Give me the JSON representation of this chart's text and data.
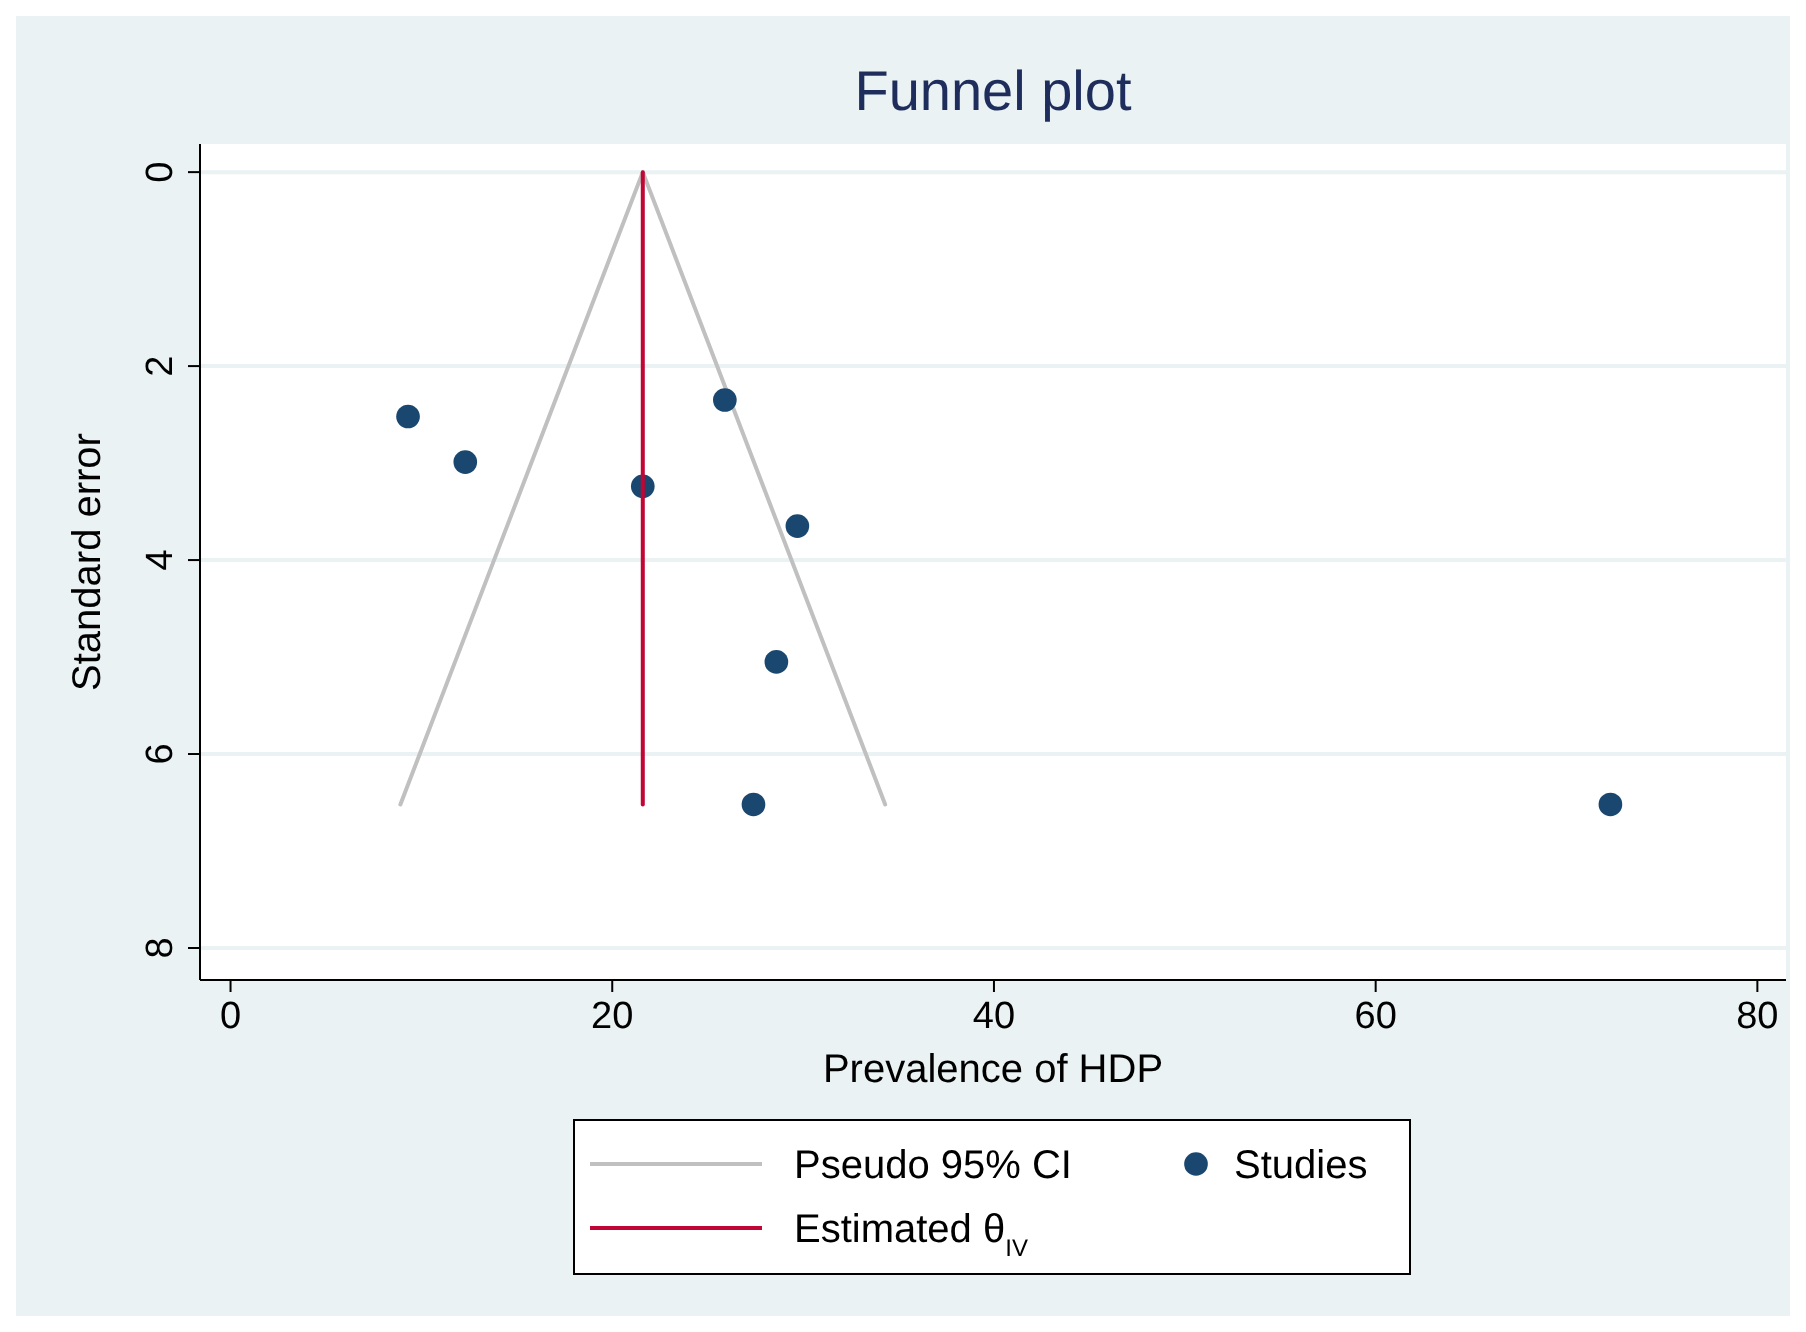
{
  "chart_data": {
    "type": "scatter",
    "title": "Funnel plot",
    "xlabel": "Prevalence of HDP",
    "ylabel": "Standard error",
    "xlim": [
      -1.6,
      81.5
    ],
    "xticks": [
      0,
      20,
      40,
      60,
      80
    ],
    "ylim": [
      8.33,
      -0.29
    ],
    "yticks": [
      0,
      2,
      4,
      6,
      8
    ],
    "grid": "y",
    "legend": "bottom",
    "series": [
      {
        "name": "Pseudo 95% CI",
        "type": "line",
        "marker": "none",
        "color": "#c0c0c0",
        "x": [
          8.9,
          21.6,
          34.3
        ],
        "values": [
          6.52,
          0,
          6.52
        ]
      },
      {
        "name": "Studies",
        "marker": "circle",
        "color": "#1a476f",
        "x": [
          9.3,
          12.3,
          21.6,
          25.9,
          29.7,
          28.6,
          27.4,
          72.3
        ],
        "values": [
          2.52,
          2.99,
          3.24,
          2.35,
          3.65,
          5.05,
          6.52,
          6.52
        ]
      },
      {
        "name": "Estimated θ$_{IV}$",
        "type": "line",
        "marker": "none",
        "color": "#c10534",
        "x": [
          21.6,
          21.6
        ],
        "values": [
          0,
          6.52
        ]
      }
    ]
  }
}
